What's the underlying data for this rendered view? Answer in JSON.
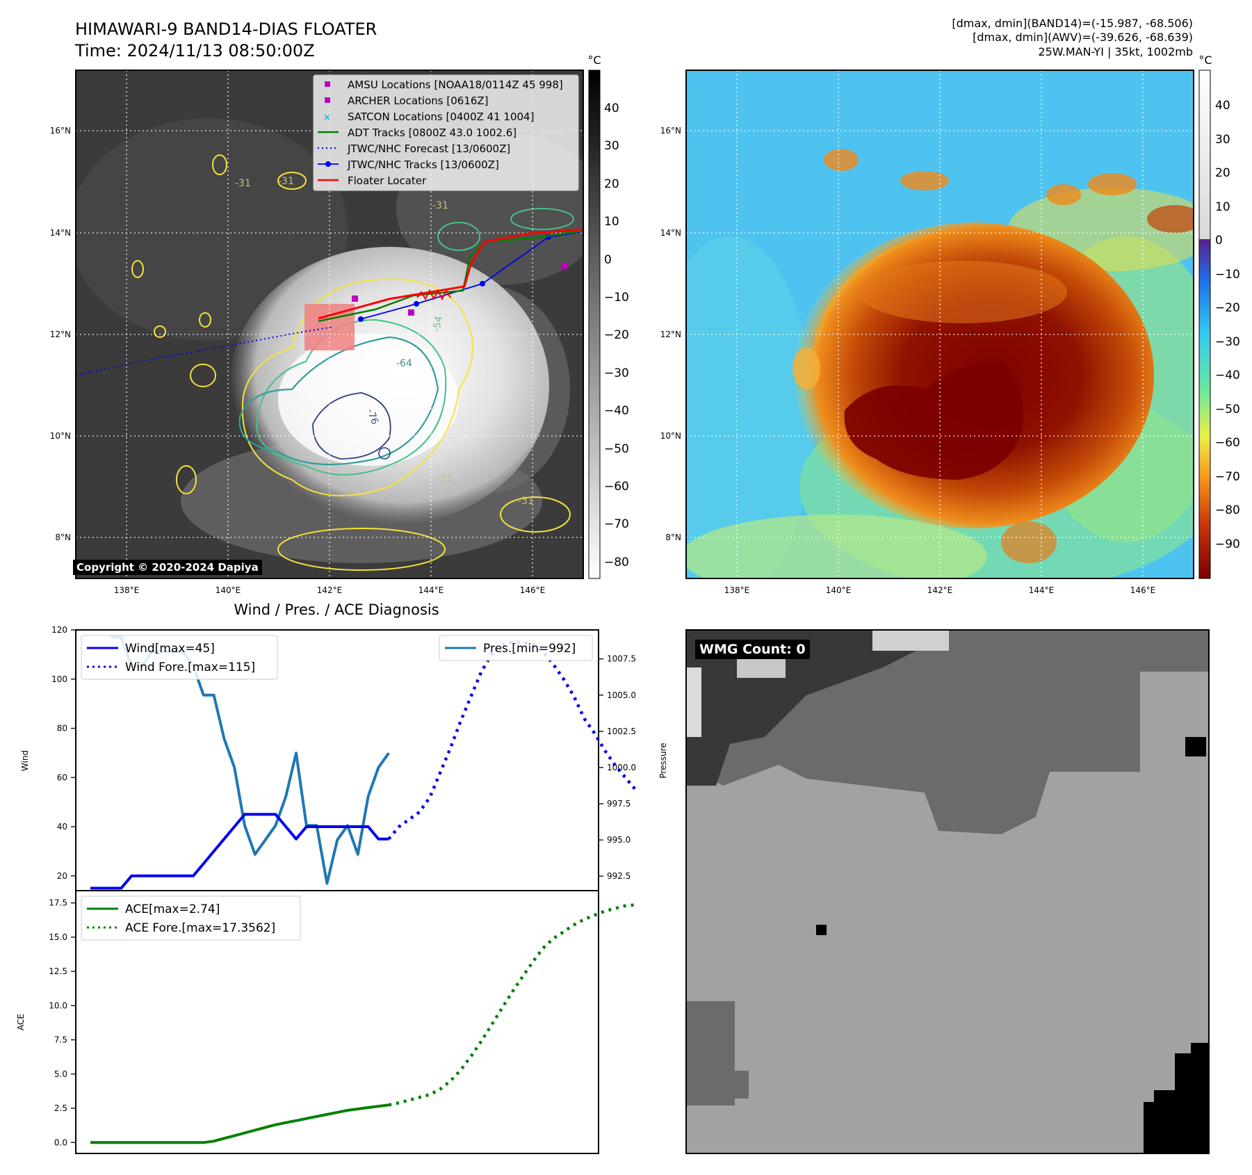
{
  "header": {
    "title": "HIMAWARI-9 BAND14-DIAS FLOATER",
    "time": "Time: 2024/11/13 08:50:00Z",
    "dmax_band14": "[dmax, dmin](BAND14)=(-15.987, -68.506)",
    "dmax_awv": "[dmax, dmin](AWV)=(-39.626, -68.639)",
    "storm": "25W.MAN-YI | 35kt, 1002mb"
  },
  "map": {
    "lon_ticks": [
      "138°E",
      "140°E",
      "142°E",
      "144°E",
      "146°E"
    ],
    "lat_ticks": [
      "16°N",
      "14°N",
      "12°N",
      "10°N",
      "8°N"
    ],
    "copyright": "Copyright © 2020-2024 Dapiya",
    "contour_labels": [
      "-31",
      "-31",
      "-31",
      "-31",
      "-31",
      "-54",
      "-64",
      "-76"
    ],
    "legend": [
      {
        "label": "AMSU Locations [NOAA18/0114Z 45 998]",
        "color": "#bf00bf",
        "kind": "square"
      },
      {
        "label": "ARCHER Locations [0616Z]",
        "color": "#bf00bf",
        "kind": "square"
      },
      {
        "label": "SATCON Locations [0400Z 41 1004]",
        "color": "#17becf",
        "kind": "x"
      },
      {
        "label": "ADT Tracks [0800Z 43.0 1002.6]",
        "color": "#008000",
        "kind": "line"
      },
      {
        "label": "JTWC/NHC Forecast [13/0600Z]",
        "color": "#0000ff",
        "kind": "dotted"
      },
      {
        "label": "JTWC/NHC Tracks [13/0600Z]",
        "color": "#0000ff",
        "kind": "line-dot"
      },
      {
        "label": "Floater Locater",
        "color": "#ff0000",
        "kind": "line"
      }
    ],
    "gray_colorbar": {
      "unit": "°C",
      "ticks": [
        "40",
        "30",
        "20",
        "10",
        "0",
        "−10",
        "−20",
        "−30",
        "−40",
        "−50",
        "−60",
        "−70",
        "−80"
      ]
    },
    "awv_colorbar": {
      "unit": "°C",
      "ticks": [
        "40",
        "30",
        "20",
        "10",
        "0",
        "−10",
        "−20",
        "−30",
        "−40",
        "−50",
        "−60",
        "−70",
        "−80",
        "−90"
      ]
    }
  },
  "diagnosis": {
    "title": "Wind / Pres. / ACE Diagnosis",
    "wind_ylabel": "Wind",
    "pres_ylabel": "Pressure",
    "ace_ylabel": "ACE",
    "wind_legend": [
      "Wind[max=45]",
      "Wind Fore.[max=115]"
    ],
    "pres_legend": [
      "Pres.[min=992]"
    ],
    "ace_legend": [
      "ACE[max=2.74]",
      "ACE Fore.[max=17.3562]"
    ],
    "wmg_label": "WMG Count: 0"
  },
  "chart_data": [
    {
      "type": "line",
      "title": "Wind / Pres. / ACE Diagnosis",
      "ylabel": "Wind",
      "ylim": [
        14,
        120
      ],
      "yticks": [
        20,
        40,
        60,
        80,
        100,
        120
      ],
      "series": [
        {
          "name": "Wind[max=45]",
          "color": "#0000ee",
          "style": "solid",
          "x": [
            0,
            1,
            2,
            3,
            4,
            5,
            6,
            7,
            8,
            9,
            10,
            11,
            12,
            13,
            14,
            15,
            16,
            17,
            18,
            19,
            20,
            21,
            22,
            23,
            24,
            25,
            26,
            27,
            28,
            29
          ],
          "y": [
            15,
            15,
            15,
            15,
            20,
            20,
            20,
            20,
            20,
            20,
            20,
            25,
            30,
            35,
            40,
            45,
            45,
            45,
            45,
            40,
            35,
            40,
            40,
            40,
            40,
            40,
            40,
            40,
            35,
            35
          ]
        },
        {
          "name": "Wind Fore.[max=115]",
          "color": "#0000ee",
          "style": "dotted",
          "x": [
            29,
            30,
            31,
            32,
            33,
            34,
            35,
            36,
            37,
            38,
            39,
            40,
            41,
            42,
            43,
            44,
            45,
            46,
            47,
            48,
            49,
            50,
            51,
            52,
            53
          ],
          "y": [
            35,
            40,
            43,
            46,
            52,
            62,
            72,
            83,
            93,
            103,
            110,
            114,
            115,
            115,
            114,
            111,
            106,
            100,
            93,
            84,
            78,
            71,
            65,
            60,
            55
          ]
        }
      ]
    },
    {
      "type": "line",
      "ylabel": "Pressure",
      "ylim": [
        991.5,
        1009.5
      ],
      "yticks": [
        992.5,
        995.0,
        997.5,
        1000.0,
        1002.5,
        1005.0,
        1007.5
      ],
      "series": [
        {
          "name": "Pres.[min=992]",
          "color": "#1f77b4",
          "style": "solid",
          "x": [
            2,
            3,
            4,
            5,
            6,
            7,
            8,
            9,
            10,
            11,
            12,
            13,
            14,
            15,
            16,
            17,
            18,
            19,
            20,
            21,
            22,
            23,
            24,
            25,
            26,
            27,
            28,
            29
          ],
          "y": [
            1009,
            1009,
            1007,
            1007,
            1008,
            1008,
            1008,
            1008,
            1007,
            1005,
            1005,
            1002,
            1000,
            996,
            994,
            995,
            996,
            998,
            1001,
            996,
            996,
            992,
            995,
            996,
            994,
            998,
            1000,
            1001
          ]
        }
      ]
    },
    {
      "type": "line",
      "ylabel": "ACE",
      "ylim": [
        -0.8,
        18.4
      ],
      "yticks": [
        0.0,
        2.5,
        5.0,
        7.5,
        10.0,
        12.5,
        15.0,
        17.5
      ],
      "series": [
        {
          "name": "ACE[max=2.74]",
          "color": "#008000",
          "style": "solid",
          "x": [
            0,
            3,
            6,
            9,
            11,
            12,
            13,
            14,
            15,
            16,
            17,
            18,
            19,
            20,
            21,
            22,
            23,
            24,
            25,
            26,
            27,
            28,
            29
          ],
          "y": [
            0,
            0,
            0,
            0,
            0,
            0.1,
            0.3,
            0.5,
            0.7,
            0.9,
            1.1,
            1.3,
            1.45,
            1.6,
            1.75,
            1.9,
            2.05,
            2.2,
            2.35,
            2.45,
            2.55,
            2.65,
            2.74
          ]
        },
        {
          "name": "ACE Fore.[max=17.3562]",
          "color": "#008000",
          "style": "dotted",
          "x": [
            29,
            30,
            31,
            32,
            33,
            34,
            35,
            36,
            37,
            38,
            39,
            40,
            41,
            42,
            43,
            44,
            45,
            46,
            47,
            48,
            49,
            50,
            51,
            52,
            53
          ],
          "y": [
            2.74,
            2.9,
            3.1,
            3.3,
            3.5,
            3.9,
            4.5,
            5.3,
            6.3,
            7.4,
            8.6,
            9.8,
            11.0,
            12.1,
            13.2,
            14.2,
            14.9,
            15.4,
            15.9,
            16.3,
            16.6,
            16.9,
            17.1,
            17.3,
            17.36
          ]
        }
      ]
    }
  ]
}
